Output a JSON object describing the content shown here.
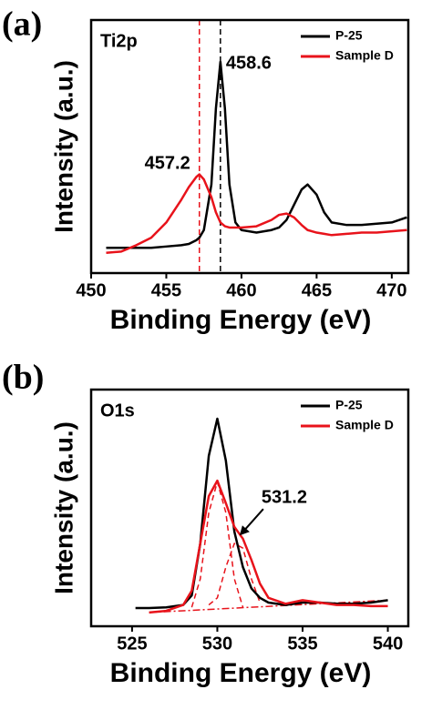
{
  "chart_data": [
    {
      "type": "line",
      "panel_label": "(a)",
      "inner_label": "Ti2p",
      "xlabel": "Binding Energy (eV)",
      "ylabel": "Intensity (a.u.)",
      "xlim": [
        450,
        471.1
      ],
      "ylim": [
        0,
        100
      ],
      "xticks": [
        450,
        455,
        460,
        465,
        470
      ],
      "x": [
        451,
        452,
        453,
        454,
        455,
        456,
        456.5,
        457,
        457.2,
        457.5,
        458,
        458.3,
        458.6,
        458.9,
        459.2,
        459.6,
        460,
        461,
        462,
        462.5,
        463,
        463.5,
        464,
        464.4,
        465,
        465.5,
        466,
        467,
        468,
        469,
        470,
        471
      ],
      "series": [
        {
          "name": "P-25",
          "color": "#000000",
          "values": [
            10,
            10,
            10,
            10,
            10.5,
            11,
            11.5,
            13,
            14,
            17,
            35,
            65,
            83.5,
            65,
            35,
            20,
            17,
            16,
            17,
            18,
            21,
            27,
            33,
            35,
            31,
            24,
            20,
            19,
            19,
            19.5,
            20,
            22
          ]
        },
        {
          "name": "Sample D",
          "color": "#e8131b",
          "values": [
            8,
            8.5,
            11,
            14,
            20,
            29,
            34,
            38,
            39,
            37,
            30,
            24,
            20,
            18.5,
            18,
            18,
            18,
            18.5,
            21,
            23,
            23.5,
            22,
            19,
            17,
            16,
            15.5,
            15,
            15.5,
            16,
            16,
            16.5,
            17
          ]
        }
      ],
      "vlines": [
        {
          "value": 458.6,
          "color": "#000000"
        },
        {
          "value": 457.2,
          "color": "#e8131b"
        }
      ]
    },
    {
      "type": "line",
      "panel_label": "(b)",
      "inner_label": "O1s",
      "xlabel": "Binding Energy (eV)",
      "ylabel": "Intensity (a.u.)",
      "xlim": [
        522.6,
        541.2
      ],
      "ylim": [
        0,
        100
      ],
      "xticks": [
        525,
        530,
        535,
        540
      ],
      "x": [
        525.2,
        526,
        527,
        528,
        528.5,
        529,
        529.5,
        530,
        530.5,
        531,
        531.5,
        532,
        532.5,
        533,
        534,
        535,
        536,
        537,
        538,
        539,
        540
      ],
      "series": [
        {
          "name": "P-25",
          "color": "#000000",
          "values": [
            7.7,
            7.7,
            8,
            9,
            13,
            35,
            72,
            87.7,
            70,
            40,
            25,
            16,
            12,
            10,
            9,
            10,
            10,
            9.5,
            9.5,
            10,
            11
          ]
        },
        {
          "name": "Sample D",
          "color": "#e8131b",
          "values": [
            null,
            5.8,
            6.5,
            9,
            15,
            35,
            55,
            61.5,
            52,
            42,
            37,
            28,
            18,
            12,
            9.5,
            11,
            10,
            9,
            9,
            8.5,
            8.5
          ]
        }
      ],
      "fits": [
        {
          "color": "#e8131b",
          "values": [
            null,
            null,
            null,
            null,
            8,
            20,
            48,
            61,
            48,
            20,
            8,
            null,
            null,
            null,
            null,
            null,
            null,
            null,
            null,
            null,
            null
          ]
        },
        {
          "color": "#e8131b",
          "values": [
            null,
            null,
            null,
            null,
            null,
            null,
            9,
            12,
            25,
            35,
            33,
            20,
            10,
            null,
            null,
            null,
            null,
            null,
            null,
            null,
            null
          ]
        }
      ],
      "baseline": {
        "color": "#e8131b",
        "x": [
          526,
          540
        ],
        "values": [
          5.8,
          11
        ]
      },
      "arrow_annotation": {
        "x": 531.2,
        "y": 38
      }
    }
  ]
}
